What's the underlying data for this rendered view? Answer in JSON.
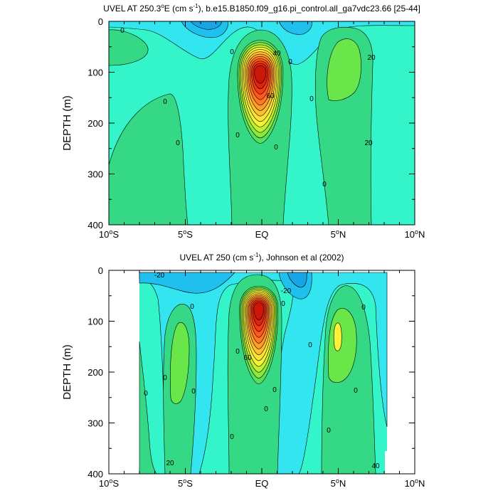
{
  "chart_data": [
    {
      "type": "contour",
      "title_parts": {
        "prefix": "UVEL AT 250.3",
        "sup1": "o",
        "mid": "E (cm s",
        "sup2": "-1",
        "suffix": "), b.e15.B1850.f09_g16.pi_control.all_ga7vdc23.66 [25-44]"
      },
      "ylabel": "DEPTH (m)",
      "xlim": [
        -10,
        10
      ],
      "ylim": [
        400,
        0
      ],
      "xticks": [
        {
          "value": -10,
          "label": "10",
          "sup": "o",
          "suffix": "S"
        },
        {
          "value": -5,
          "label": "5",
          "sup": "o",
          "suffix": "S"
        },
        {
          "value": 0,
          "label": "EQ",
          "sup": "",
          "suffix": ""
        },
        {
          "value": 5,
          "label": "5",
          "sup": "o",
          "suffix": "N"
        },
        {
          "value": 10,
          "label": "10",
          "sup": "o",
          "suffix": "N"
        }
      ],
      "yticks": [
        0,
        100,
        200,
        300,
        400
      ],
      "contour_labels": [
        "0",
        "0",
        "0",
        "0",
        "0",
        "0",
        "0",
        "0",
        "0",
        "20",
        "20",
        "40",
        "60"
      ],
      "core": {
        "lat": -0.1,
        "depth": 100,
        "max_value": 100
      }
    },
    {
      "type": "contour",
      "title_parts": {
        "prefix": "UVEL AT 250 (cm s",
        "sup1": "-1",
        "mid": "), Johnson et al (2002)",
        "sup2": "",
        "suffix": ""
      },
      "ylabel": "DEPTH (m)",
      "xlim": [
        -10,
        10
      ],
      "ylim": [
        400,
        0
      ],
      "xticks": [
        {
          "value": -10,
          "label": "10",
          "sup": "o",
          "suffix": "S"
        },
        {
          "value": -5,
          "label": "5",
          "sup": "o",
          "suffix": "S"
        },
        {
          "value": 0,
          "label": "EQ",
          "sup": "",
          "suffix": ""
        },
        {
          "value": 5,
          "label": "5",
          "sup": "o",
          "suffix": "N"
        },
        {
          "value": 10,
          "label": "10",
          "sup": "o",
          "suffix": "N"
        }
      ],
      "yticks": [
        0,
        100,
        200,
        300,
        400
      ],
      "contour_labels": [
        "-20",
        "-20",
        "0",
        "0",
        "0",
        "0",
        "0",
        "0",
        "0",
        "0",
        "0",
        "0",
        "0",
        "0",
        "0",
        "20",
        "40",
        "60"
      ],
      "core": {
        "lat": -0.2,
        "depth": 75,
        "max_value": 100
      }
    }
  ]
}
